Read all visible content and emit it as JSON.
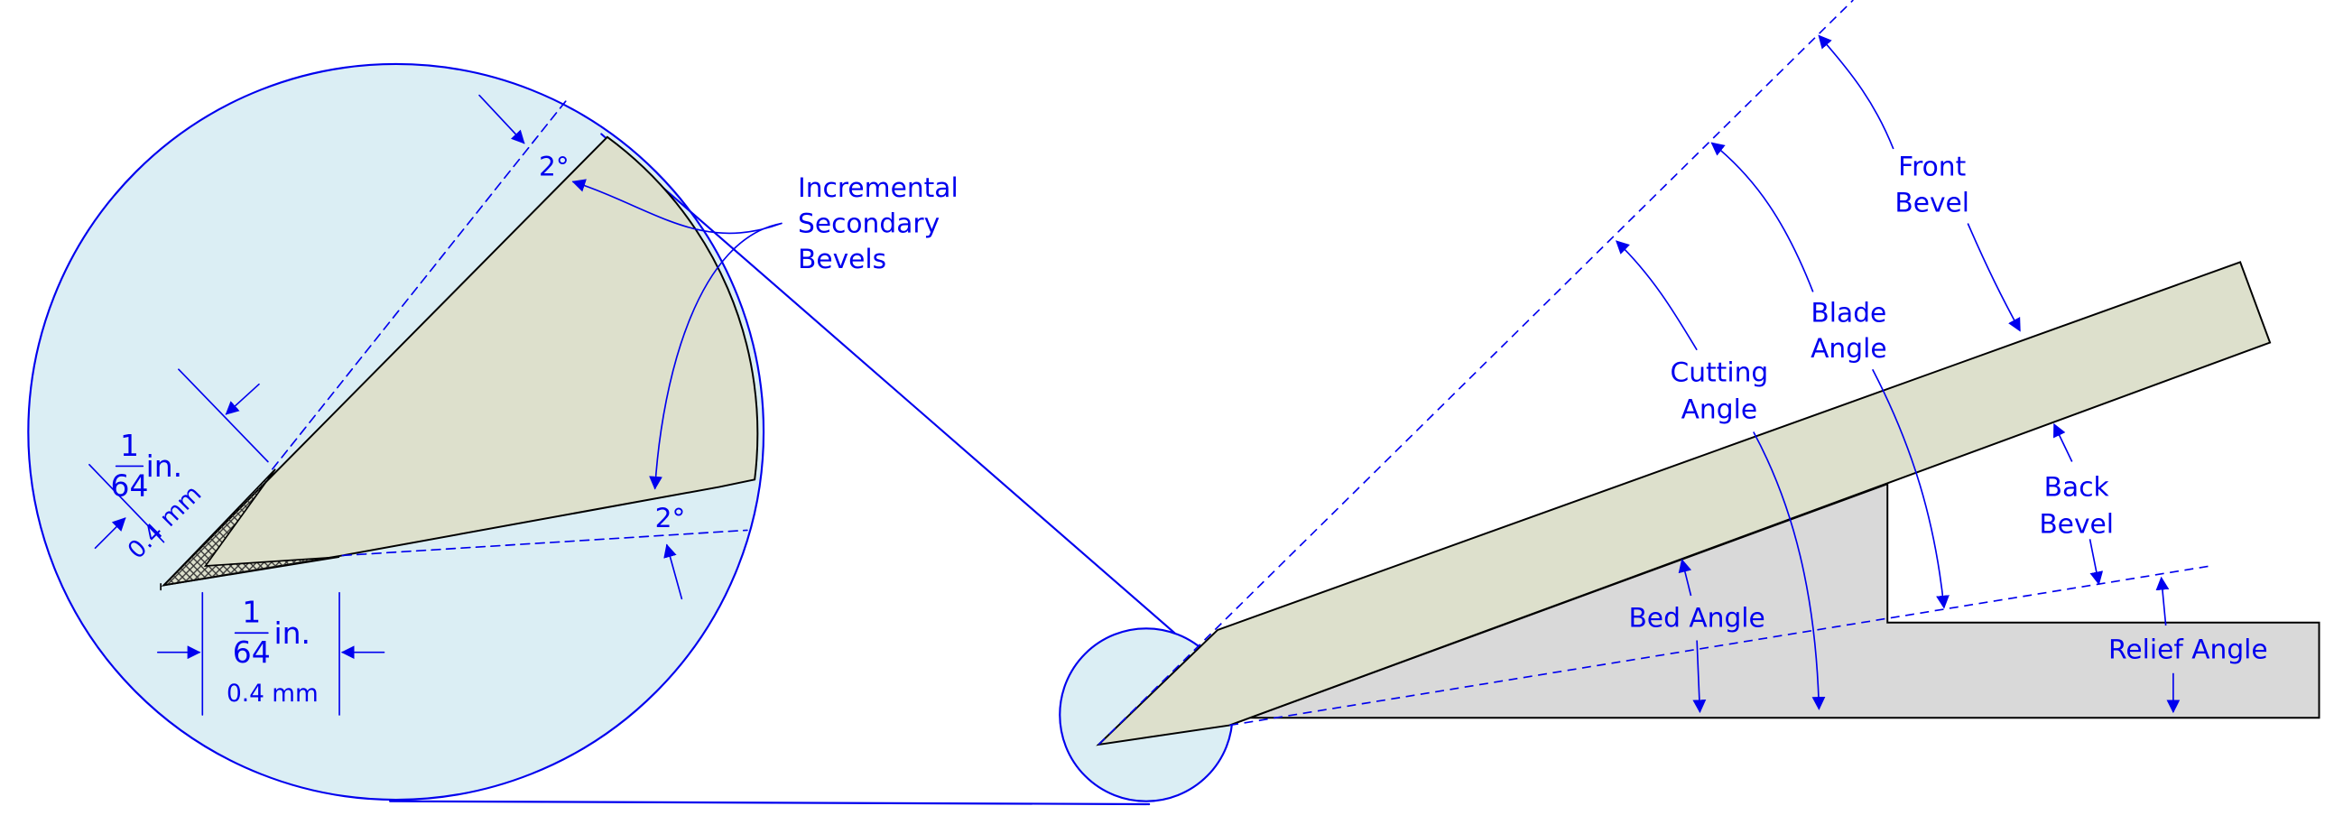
{
  "zoom": {
    "label_lines": [
      "Incremental",
      "Secondary",
      "Bevels"
    ],
    "angle_top": "2°",
    "angle_bottom": "2°",
    "dim_vertical": {
      "numerator": "1",
      "denominator": "64",
      "unit": "in.",
      "metric": "0.4 mm"
    },
    "dim_horizontal": {
      "numerator": "1",
      "denominator": "64",
      "unit": "in.",
      "metric": "0.4 mm"
    }
  },
  "main": {
    "front_bevel": [
      "Front",
      "Bevel"
    ],
    "blade_angle": [
      "Blade",
      "Angle"
    ],
    "cutting_angle": [
      "Cutting",
      "Angle"
    ],
    "back_bevel": [
      "Back",
      "Bevel"
    ],
    "bed_angle": "Bed Angle",
    "relief_angle": "Relief Angle"
  }
}
